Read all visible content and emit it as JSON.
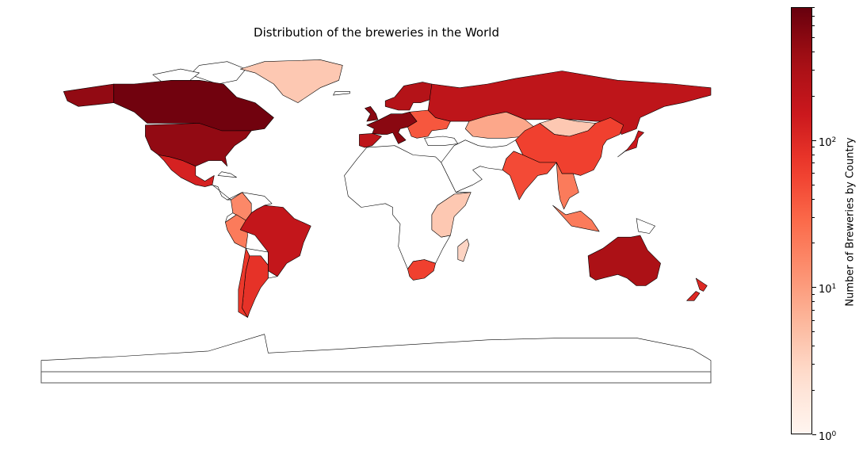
{
  "map": {
    "title": "Distribution of the breweries in the World",
    "projection": "plate-carree",
    "extent": {
      "lon": [
        -180,
        180
      ],
      "lat": [
        -90,
        84
      ]
    }
  },
  "colorbar": {
    "label": "Number of Breweries by Country",
    "scale": "log",
    "range": [
      1,
      800
    ],
    "cmap": "Reds",
    "ticks": [
      {
        "value": 1,
        "label": "10",
        "exp": "0"
      },
      {
        "value": 10,
        "label": "10",
        "exp": "1"
      },
      {
        "value": 100,
        "label": "10",
        "exp": "2"
      }
    ],
    "colors": [
      "#fff5f0",
      "#fee0d2",
      "#fcbba1",
      "#fc9272",
      "#fb6a4a",
      "#ef3b2c",
      "#cb181d",
      "#a50f15",
      "#67000d"
    ]
  },
  "chart_data": {
    "type": "choropleth",
    "title": "Distribution of the breweries in the World",
    "colorbar_label": "Number of Breweries by Country",
    "scale": "log",
    "range": [
      1,
      800
    ],
    "regions": [
      {
        "name": "Canada",
        "value": 700
      },
      {
        "name": "United States",
        "value": 450
      },
      {
        "name": "Mexico",
        "value": 120
      },
      {
        "name": "Brazil",
        "value": 180
      },
      {
        "name": "Argentina",
        "value": 80
      },
      {
        "name": "Chile",
        "value": 70
      },
      {
        "name": "Peru",
        "value": 20
      },
      {
        "name": "Colombia",
        "value": 15
      },
      {
        "name": "Greenland",
        "value": 4
      },
      {
        "name": "Russia",
        "value": 200
      },
      {
        "name": "China",
        "value": 60
      },
      {
        "name": "India",
        "value": 50
      },
      {
        "name": "Mongolia",
        "value": 4
      },
      {
        "name": "Japan",
        "value": 150
      },
      {
        "name": "Australia",
        "value": 300
      },
      {
        "name": "New Zealand",
        "value": 100
      },
      {
        "name": "South Africa",
        "value": 60
      },
      {
        "name": "Western Europe",
        "value": 500
      },
      {
        "name": "Nordic countries",
        "value": 250
      },
      {
        "name": "Iberia",
        "value": 200
      },
      {
        "name": "Eastern Europe",
        "value": 40
      },
      {
        "name": "Kazakhstan",
        "value": 8
      },
      {
        "name": "Southeast Asia",
        "value": 20
      },
      {
        "name": "East Africa",
        "value": 4
      },
      {
        "name": "Madagascar",
        "value": 3
      }
    ]
  }
}
